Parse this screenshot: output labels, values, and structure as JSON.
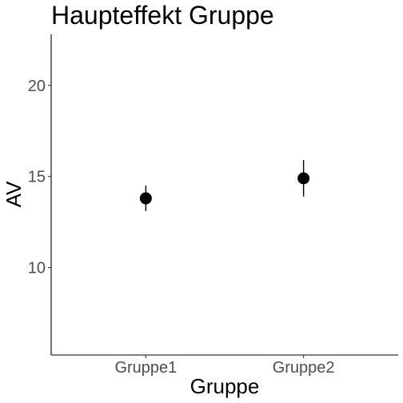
{
  "chart_data": {
    "type": "scatter",
    "title": "Haupteffekt Gruppe",
    "xlabel": "Gruppe",
    "ylabel": "AV",
    "categories": [
      "Gruppe1",
      "Gruppe2"
    ],
    "series": [
      {
        "values": [
          13.8,
          14.9
        ],
        "error_low": [
          13.1,
          13.9
        ],
        "error_high": [
          14.5,
          15.9
        ]
      }
    ],
    "ylim": [
      5.2,
      22.8
    ],
    "yticks": [
      10,
      15,
      20
    ],
    "grid": false,
    "legend": "none",
    "point_color": "#000000"
  }
}
